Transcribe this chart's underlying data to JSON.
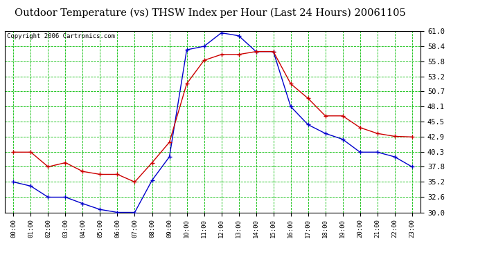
{
  "title": "Outdoor Temperature (vs) THSW Index per Hour (Last 24 Hours) 20061105",
  "copyright": "Copyright 2006 Cartronics.com",
  "hours": [
    "00:00",
    "01:00",
    "02:00",
    "03:00",
    "04:00",
    "05:00",
    "06:00",
    "07:00",
    "08:00",
    "09:00",
    "10:00",
    "11:00",
    "12:00",
    "13:00",
    "14:00",
    "15:00",
    "16:00",
    "17:00",
    "18:00",
    "19:00",
    "20:00",
    "21:00",
    "22:00",
    "23:00"
  ],
  "temp_blue": [
    35.2,
    34.5,
    32.6,
    32.6,
    31.5,
    30.5,
    30.0,
    30.0,
    35.5,
    39.5,
    57.8,
    58.4,
    60.7,
    60.2,
    57.5,
    57.5,
    48.1,
    45.0,
    43.5,
    42.5,
    40.3,
    40.3,
    39.5,
    37.8
  ],
  "thsw_red": [
    40.3,
    40.3,
    37.8,
    38.5,
    37.0,
    36.5,
    36.5,
    35.2,
    38.5,
    42.0,
    52.0,
    56.0,
    57.0,
    57.0,
    57.5,
    57.5,
    52.0,
    49.5,
    46.5,
    46.5,
    44.5,
    43.5,
    43.0,
    42.9
  ],
  "ylim_min": 30.0,
  "ylim_max": 61.0,
  "yticks": [
    30.0,
    32.6,
    35.2,
    37.8,
    40.3,
    42.9,
    45.5,
    48.1,
    50.7,
    53.2,
    55.8,
    58.4,
    61.0
  ],
  "blue_color": "#0000CC",
  "red_color": "#CC0000",
  "bg_color": "#ffffff",
  "plot_bg_color": "#ffffff",
  "grid_color": "#00BB00",
  "title_fontsize": 10.5,
  "copyright_fontsize": 6.5,
  "tick_fontsize": 7.5,
  "xtick_fontsize": 6.5
}
